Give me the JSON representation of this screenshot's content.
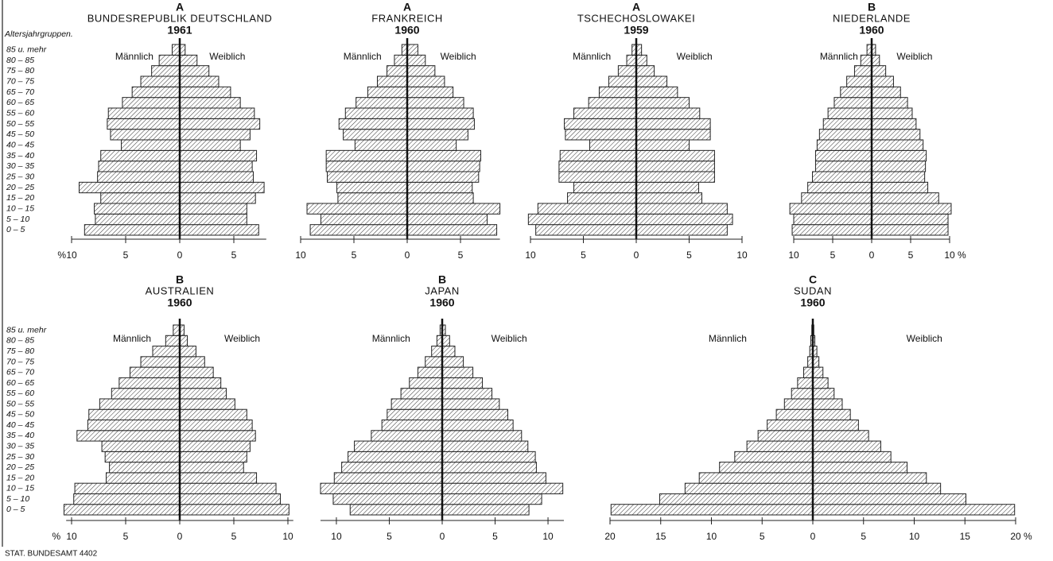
{
  "source": "STAT. BUNDESAMT 4402",
  "chart_data": [
    {
      "type": "pyramid",
      "group": "A",
      "title": "BUNDESREPUBLIK DEUTSCHLAND",
      "year": 1961,
      "ylabel": "Altersjahrgruppen.",
      "categories": [
        "0 – 5",
        "5 – 10",
        "10 – 15",
        "15 – 20",
        "20 – 25",
        "25 – 30",
        "30 – 35",
        "35 – 40",
        "40 – 45",
        "45 – 50",
        "50 – 55",
        "55 – 60",
        "60 – 65",
        "65 – 70",
        "70 – 75",
        "75 – 80",
        "80 – 85",
        "85 u. mehr"
      ],
      "series": [
        {
          "name": "Männlich",
          "side": "left",
          "values": [
            8.8,
            7.8,
            7.9,
            7.3,
            9.3,
            7.6,
            7.5,
            7.3,
            5.4,
            6.4,
            6.7,
            6.6,
            5.3,
            4.4,
            3.6,
            2.6,
            1.9,
            0.7
          ]
        },
        {
          "name": "Weiblich",
          "side": "right",
          "values": [
            7.3,
            6.2,
            6.2,
            7.0,
            7.8,
            6.8,
            6.7,
            7.1,
            5.6,
            6.5,
            7.4,
            6.9,
            5.6,
            4.7,
            3.6,
            2.7,
            1.6,
            0.5
          ]
        }
      ],
      "xlim": [
        -10,
        8
      ],
      "xticks": [
        {
          "value": -10,
          "label": "10"
        },
        {
          "value": -5,
          "label": "5"
        },
        0,
        5
      ],
      "unit": "%",
      "unit_side": "left"
    },
    {
      "type": "pyramid",
      "group": "A",
      "title": "FRANKREICH",
      "year": 1960,
      "series": [
        {
          "name": "Männlich",
          "side": "left",
          "values": [
            9.1,
            8.1,
            9.4,
            6.5,
            6.6,
            7.5,
            7.6,
            7.6,
            4.9,
            6.0,
            6.4,
            5.8,
            4.8,
            3.7,
            2.8,
            1.9,
            1.2,
            0.5
          ]
        },
        {
          "name": "Weiblich",
          "side": "right",
          "values": [
            8.4,
            7.5,
            8.7,
            6.2,
            6.1,
            6.7,
            6.8,
            6.9,
            4.6,
            5.7,
            6.3,
            6.2,
            5.3,
            4.3,
            3.5,
            2.6,
            1.7,
            1.0
          ]
        }
      ],
      "xlim": [
        -10,
        8.7
      ],
      "xticks": [
        {
          "value": -10,
          "label": "10"
        },
        {
          "value": -5,
          "label": "5"
        },
        0,
        5
      ]
    },
    {
      "type": "pyramid",
      "group": "A",
      "title": "TSCHECHOSLOWAKEI",
      "year": 1959,
      "series": [
        {
          "name": "Männlich",
          "side": "left",
          "values": [
            9.5,
            10.2,
            9.3,
            6.5,
            5.9,
            7.3,
            7.3,
            7.2,
            4.4,
            6.7,
            6.8,
            5.9,
            4.5,
            3.5,
            2.6,
            1.7,
            0.9,
            0.4
          ]
        },
        {
          "name": "Weiblich",
          "side": "right",
          "values": [
            8.6,
            9.1,
            8.6,
            6.2,
            5.9,
            7.4,
            7.4,
            7.4,
            5.0,
            7.0,
            7.0,
            6.0,
            5.0,
            3.9,
            2.9,
            1.7,
            1.0,
            0.5
          ]
        }
      ],
      "xlim": [
        -10,
        10
      ],
      "xticks": [
        {
          "value": -10,
          "label": "10"
        },
        {
          "value": -5,
          "label": "5"
        },
        0,
        5,
        10
      ]
    },
    {
      "type": "pyramid",
      "group": "B",
      "title": "NIEDERLANDE",
      "year": 1960,
      "series": [
        {
          "name": "Männlich",
          "side": "left",
          "values": [
            10.2,
            10.0,
            10.5,
            9.0,
            8.2,
            7.6,
            7.2,
            7.2,
            7.0,
            6.7,
            6.2,
            5.6,
            4.8,
            4.0,
            3.2,
            2.2,
            1.4,
            0.6
          ]
        },
        {
          "name": "Weiblich",
          "side": "right",
          "values": [
            9.8,
            9.8,
            10.2,
            8.6,
            7.2,
            6.8,
            6.9,
            7.0,
            6.6,
            6.2,
            5.7,
            5.2,
            4.6,
            3.7,
            2.8,
            1.8,
            1.0,
            0.5
          ]
        }
      ],
      "xlim": [
        -10,
        10
      ],
      "xticks": [
        {
          "value": -10,
          "label": "10"
        },
        {
          "value": -5,
          "label": "5"
        },
        0,
        5,
        10
      ],
      "unit": "%",
      "unit_side": "right"
    },
    {
      "type": "pyramid",
      "group": "B",
      "title": "AUSTRALIEN",
      "year": 1960,
      "categories": [
        "0 – 5",
        "5 – 10",
        "10 – 15",
        "15 – 20",
        "20 – 25",
        "25 – 30",
        "30 – 35",
        "35 – 40",
        "40 – 45",
        "45 – 50",
        "50 – 55",
        "55 – 60",
        "60 – 65",
        "65 – 70",
        "70 – 75",
        "75 – 80",
        "80 – 85",
        "85 u. mehr"
      ],
      "series": [
        {
          "name": "Männlich",
          "side": "left",
          "values": [
            10.7,
            9.8,
            9.7,
            6.8,
            6.5,
            6.9,
            7.2,
            9.5,
            8.5,
            8.4,
            7.4,
            6.3,
            5.6,
            4.6,
            3.6,
            2.5,
            1.3,
            0.6
          ]
        },
        {
          "name": "Weiblich",
          "side": "right",
          "values": [
            10.1,
            9.3,
            8.9,
            7.1,
            5.9,
            6.2,
            6.5,
            7.0,
            6.7,
            6.2,
            5.1,
            4.3,
            3.8,
            3.1,
            2.3,
            1.5,
            0.7,
            0.4
          ]
        }
      ],
      "xlim": [
        -10.5,
        10.5
      ],
      "xticks": [
        {
          "value": -10,
          "label": "10"
        },
        {
          "value": -5,
          "label": "5"
        },
        0,
        5,
        10
      ],
      "unit": "%",
      "unit_side": "left"
    },
    {
      "type": "pyramid",
      "group": "B",
      "title": "JAPAN",
      "year": 1960,
      "series": [
        {
          "name": "Männlich",
          "side": "left",
          "values": [
            8.7,
            10.3,
            11.5,
            10.2,
            9.5,
            8.9,
            8.3,
            6.7,
            5.7,
            5.2,
            4.8,
            3.9,
            3.1,
            2.3,
            1.6,
            1.0,
            0.5,
            0.2
          ]
        },
        {
          "name": "Weiblich",
          "side": "right",
          "values": [
            8.2,
            9.4,
            11.4,
            9.8,
            8.9,
            8.8,
            8.1,
            7.5,
            6.7,
            6.2,
            5.4,
            4.7,
            3.8,
            2.9,
            2.0,
            1.2,
            0.7,
            0.3
          ]
        }
      ],
      "xlim": [
        -11.5,
        11.5
      ],
      "xticks": [
        {
          "value": -10,
          "label": "10"
        },
        {
          "value": -5,
          "label": "5"
        },
        0,
        5,
        10
      ]
    },
    {
      "type": "pyramid",
      "group": "C",
      "title": "SUDAN",
      "year": 1960,
      "series": [
        {
          "name": "Männlich",
          "side": "left",
          "values": [
            19.9,
            15.1,
            12.6,
            11.2,
            9.2,
            7.7,
            6.5,
            5.4,
            4.5,
            3.6,
            2.8,
            2.1,
            1.5,
            0.9,
            0.5,
            0.3,
            0.2,
            0.1
          ]
        },
        {
          "name": "Weiblich",
          "side": "right",
          "values": [
            19.9,
            15.1,
            12.6,
            11.2,
            9.3,
            7.7,
            6.7,
            5.5,
            4.5,
            3.7,
            2.9,
            2.1,
            1.5,
            1.0,
            0.6,
            0.4,
            0.2,
            0.1
          ]
        }
      ],
      "xlim": [
        -20,
        20
      ],
      "xticks": [
        {
          "value": -20,
          "label": "20"
        },
        {
          "value": -15,
          "label": "15"
        },
        {
          "value": -10,
          "label": "10"
        },
        {
          "value": -5,
          "label": "5"
        },
        0,
        5,
        10,
        15,
        20
      ],
      "unit": "%",
      "unit_side": "right"
    }
  ]
}
